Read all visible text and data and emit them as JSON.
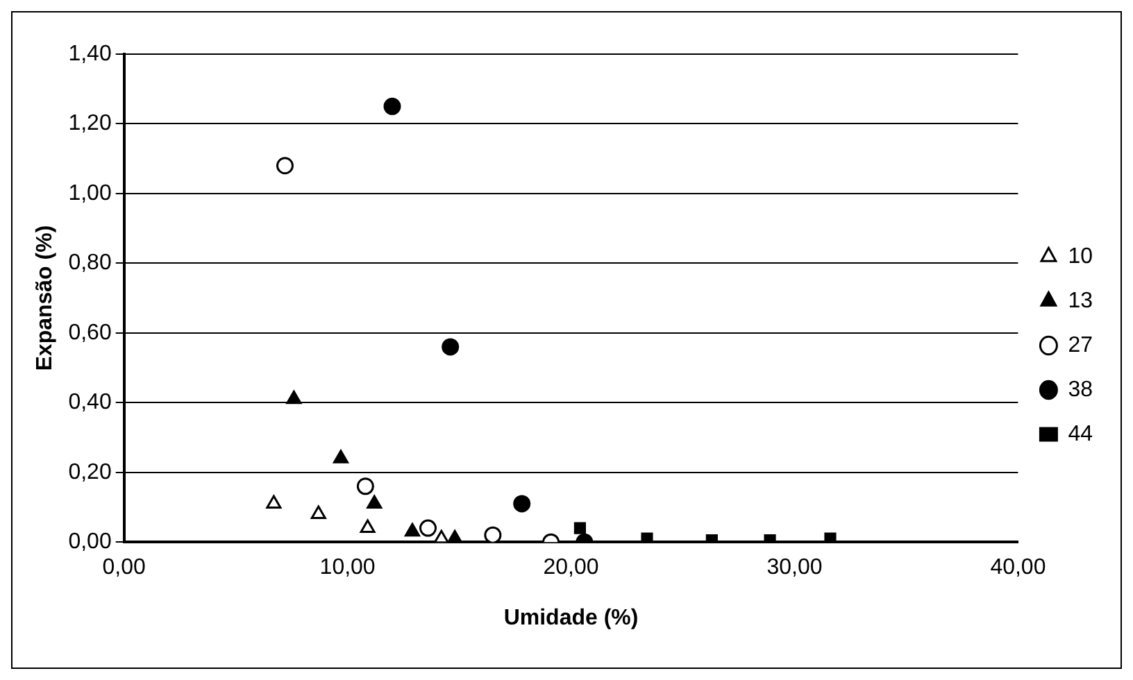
{
  "chart_data": {
    "type": "scatter",
    "xlabel": "Umidade (%)",
    "ylabel": "Expansão (%)",
    "xlim": [
      0,
      40
    ],
    "xticks": [
      {
        "value": 0,
        "label": "0,00"
      },
      {
        "value": 10,
        "label": "10,00"
      },
      {
        "value": 20,
        "label": "20,00"
      },
      {
        "value": 30,
        "label": "30,00"
      },
      {
        "value": 40,
        "label": "40,00"
      }
    ],
    "ylim": [
      0,
      1.4
    ],
    "yticks": [
      {
        "value": 0,
        "label": "0,00"
      },
      {
        "value": 0.2,
        "label": "0,20"
      },
      {
        "value": 0.4,
        "label": "0,40"
      },
      {
        "value": 0.6,
        "label": "0,60"
      },
      {
        "value": 0.8,
        "label": "0,80"
      },
      {
        "value": 1.0,
        "label": "1,00"
      },
      {
        "value": 1.2,
        "label": "1,20"
      },
      {
        "value": 1.4,
        "label": "1,40"
      }
    ],
    "grid": "y",
    "legend": "right",
    "series": [
      {
        "name": "10",
        "color": "#ffffff",
        "marker": "triangle",
        "x": [
          6.7,
          8.7,
          10.9,
          14.2
        ],
        "values": [
          0.11,
          0.08,
          0.04,
          0.01
        ]
      },
      {
        "name": "13",
        "color": "#000000",
        "marker": "triangle",
        "x": [
          7.6,
          9.7,
          11.2,
          12.9,
          14.8
        ],
        "values": [
          0.41,
          0.24,
          0.11,
          0.03,
          0.01
        ]
      },
      {
        "name": "27",
        "color": "#ffffff",
        "marker": "circle",
        "x": [
          7.2,
          10.8,
          13.6,
          16.5,
          19.1
        ],
        "values": [
          1.08,
          0.16,
          0.04,
          0.02,
          0.0
        ]
      },
      {
        "name": "38",
        "color": "#000000",
        "marker": "circle",
        "x": [
          12.0,
          14.6,
          17.8,
          20.6
        ],
        "values": [
          1.25,
          0.56,
          0.11,
          0.0
        ]
      },
      {
        "name": "44",
        "color": "#000000",
        "marker": "square",
        "x": [
          20.4,
          23.4,
          26.3,
          28.9,
          31.6
        ],
        "values": [
          0.04,
          0.01,
          0.005,
          0.005,
          0.01
        ]
      }
    ]
  }
}
